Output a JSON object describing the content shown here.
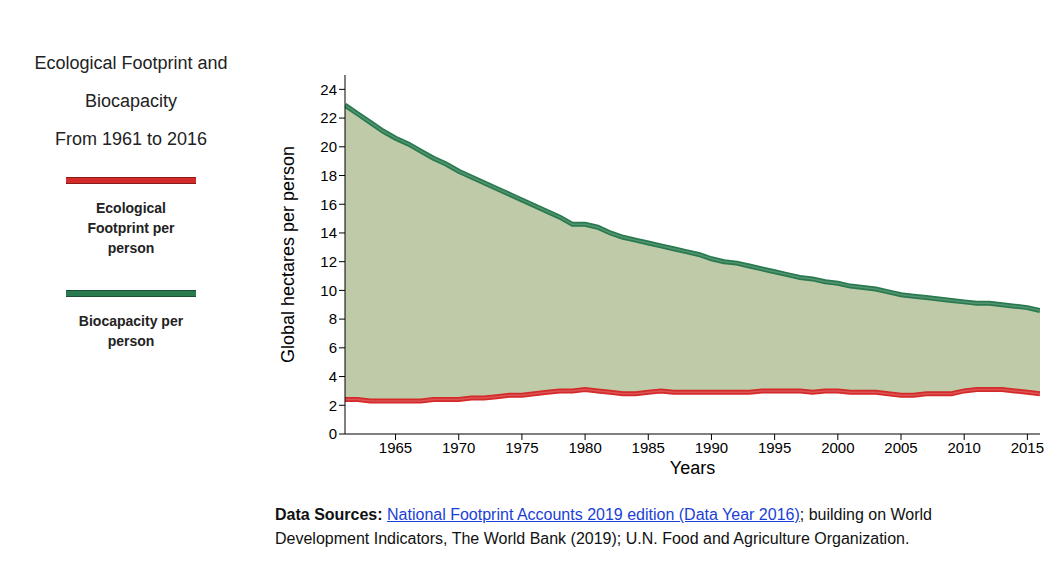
{
  "chart_data": {
    "type": "area_between",
    "title": "Ecological Footprint and\nBiocapacity\nFrom 1961 to 2016",
    "x_label": "Years",
    "y_label": "Global hectares per person",
    "x": [
      1961,
      1962,
      1963,
      1964,
      1965,
      1966,
      1967,
      1968,
      1969,
      1970,
      1971,
      1972,
      1973,
      1974,
      1975,
      1976,
      1977,
      1978,
      1979,
      1980,
      1981,
      1982,
      1983,
      1984,
      1985,
      1986,
      1987,
      1988,
      1989,
      1990,
      1991,
      1992,
      1993,
      1994,
      1995,
      1996,
      1997,
      1998,
      1999,
      2000,
      2001,
      2002,
      2003,
      2004,
      2005,
      2006,
      2007,
      2008,
      2009,
      2010,
      2011,
      2012,
      2013,
      2014,
      2015,
      2016
    ],
    "series": [
      {
        "name": "Ecological Footprint per person",
        "color": "#d42a2a",
        "values": [
          2.4,
          2.4,
          2.3,
          2.3,
          2.3,
          2.3,
          2.3,
          2.4,
          2.4,
          2.4,
          2.5,
          2.5,
          2.6,
          2.7,
          2.7,
          2.8,
          2.9,
          3.0,
          3.0,
          3.1,
          3.0,
          2.9,
          2.8,
          2.8,
          2.9,
          3.0,
          2.9,
          2.9,
          2.9,
          2.9,
          2.9,
          2.9,
          2.9,
          3.0,
          3.0,
          3.0,
          3.0,
          2.9,
          3.0,
          3.0,
          2.9,
          2.9,
          2.9,
          2.8,
          2.7,
          2.7,
          2.8,
          2.8,
          2.8,
          3.0,
          3.1,
          3.1,
          3.1,
          3.0,
          2.9,
          2.8
        ]
      },
      {
        "name": "Biocapacity per person",
        "color": "#2a7a4f",
        "values": [
          22.9,
          22.3,
          21.7,
          21.1,
          20.6,
          20.2,
          19.7,
          19.2,
          18.8,
          18.3,
          17.9,
          17.5,
          17.1,
          16.7,
          16.3,
          15.9,
          15.5,
          15.1,
          14.6,
          14.6,
          14.4,
          14.0,
          13.7,
          13.5,
          13.3,
          13.1,
          12.9,
          12.7,
          12.5,
          12.2,
          12.0,
          11.9,
          11.7,
          11.5,
          11.3,
          11.1,
          10.9,
          10.8,
          10.6,
          10.5,
          10.3,
          10.2,
          10.1,
          9.9,
          9.7,
          9.6,
          9.5,
          9.4,
          9.3,
          9.2,
          9.1,
          9.1,
          9.0,
          8.9,
          8.8,
          8.6
        ]
      }
    ],
    "xlim": [
      1961,
      2016
    ],
    "xticks": [
      1965,
      1970,
      1975,
      1980,
      1985,
      1990,
      1995,
      2000,
      2005,
      2010,
      2015
    ],
    "ylim": [
      0,
      25
    ],
    "yticks": [
      0,
      2,
      4,
      6,
      8,
      10,
      12,
      14,
      16,
      18,
      20,
      22,
      24
    ],
    "grid": false,
    "source": {
      "label": "Data Sources:",
      "link": "National Footprint Accounts 2019 edition (Data Year 2016)",
      "text": "; building on World Development Indicators, The World Bank (2019); U.N. Food and Agriculture Organization."
    }
  }
}
